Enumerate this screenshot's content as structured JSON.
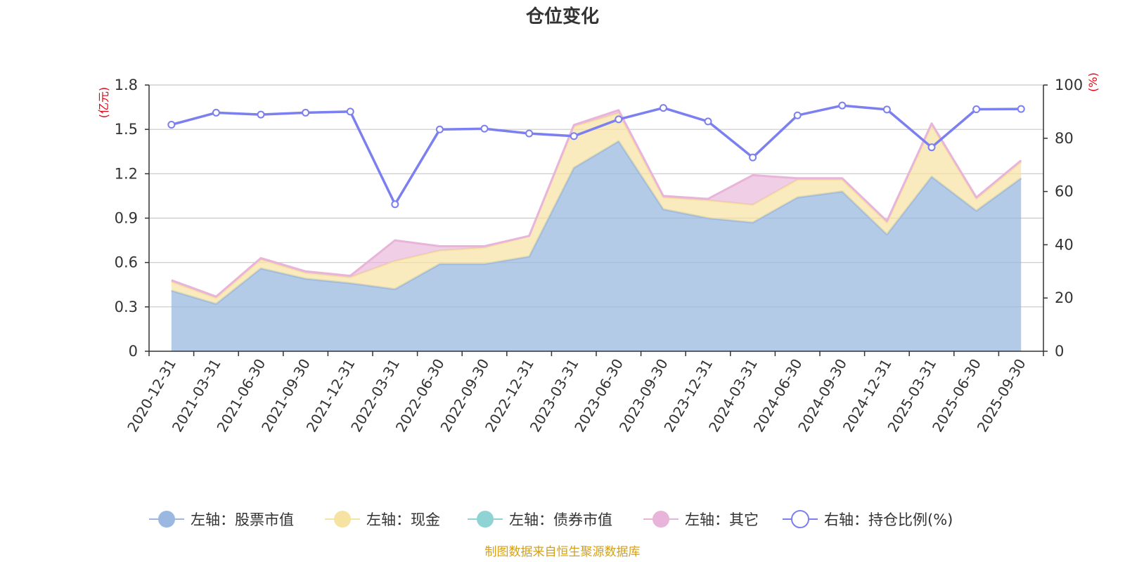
{
  "chart_data": {
    "type": "area",
    "title": "仓位变化",
    "left_axis_unit": "(亿元)",
    "right_axis_unit": "(%)",
    "left_ylim": [
      0,
      1.8
    ],
    "left_ticks": [
      "0",
      "0.3",
      "0.6",
      "0.9",
      "1.2",
      "1.5",
      "1.8"
    ],
    "right_ylim": [
      0,
      100
    ],
    "right_ticks": [
      "0",
      "20",
      "40",
      "60",
      "80",
      "100"
    ],
    "categories": [
      "2020-12-31",
      "2021-03-31",
      "2021-06-30",
      "2021-09-30",
      "2021-12-31",
      "2022-03-31",
      "2022-06-30",
      "2022-09-30",
      "2022-12-31",
      "2023-03-31",
      "2023-06-30",
      "2023-09-30",
      "2023-12-31",
      "2024-03-31",
      "2024-06-30",
      "2024-09-30",
      "2024-12-31",
      "2025-03-31",
      "2025-06-30",
      "2025-09-30"
    ],
    "series": [
      {
        "name": "左轴：股票市值",
        "axis": "left",
        "color": "#9bb9e0",
        "values": [
          0.41,
          0.32,
          0.56,
          0.49,
          0.46,
          0.42,
          0.59,
          0.59,
          0.64,
          1.24,
          1.42,
          0.96,
          0.9,
          0.87,
          1.04,
          1.08,
          0.79,
          1.18,
          0.95,
          1.17
        ]
      },
      {
        "name": "左轴：现金",
        "axis": "left",
        "color": "#f6e3a1",
        "values": [
          0.06,
          0.04,
          0.06,
          0.04,
          0.04,
          0.19,
          0.09,
          0.11,
          0.14,
          0.28,
          0.19,
          0.08,
          0.12,
          0.12,
          0.12,
          0.08,
          0.08,
          0.35,
          0.08,
          0.11
        ]
      },
      {
        "name": "左轴：债券市值",
        "axis": "left",
        "color": "#8fd3d4",
        "values": [
          0,
          0,
          0,
          0,
          0,
          0,
          0,
          0,
          0,
          0,
          0,
          0,
          0,
          0,
          0,
          0,
          0,
          0,
          0,
          0
        ]
      },
      {
        "name": "左轴：其它",
        "axis": "left",
        "color": "#e8b4d9",
        "values": [
          0.01,
          0.01,
          0.01,
          0.01,
          0.01,
          0.14,
          0.03,
          0.01,
          0.0,
          0.01,
          0.02,
          0.01,
          0.01,
          0.2,
          0.01,
          0.01,
          0.01,
          0.01,
          0.01,
          0.01
        ]
      },
      {
        "name": "右轴：持仓比例(%)",
        "axis": "right",
        "color": "#7b7ff0",
        "values": [
          85.1,
          89.6,
          88.9,
          89.6,
          90.0,
          55.2,
          83.3,
          83.6,
          81.8,
          80.8,
          87.1,
          91.4,
          86.3,
          72.8,
          88.6,
          92.3,
          90.8,
          76.6,
          90.9,
          91.0
        ]
      }
    ]
  },
  "footer": {
    "source": "制图数据来自恒生聚源数据库"
  }
}
